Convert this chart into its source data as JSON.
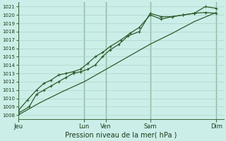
{
  "title": "Pression niveau de la mer( hPa )",
  "bg_color": "#cceee8",
  "grid_color": "#aad4cc",
  "line_color": "#2d5c2d",
  "marker_color": "#2d5c2d",
  "ylim": [
    1007.5,
    1021.5
  ],
  "yticks": [
    1008,
    1009,
    1010,
    1011,
    1012,
    1013,
    1014,
    1015,
    1016,
    1017,
    1018,
    1019,
    1020,
    1021
  ],
  "xtick_labels": [
    "Jeu",
    "Lun",
    "Ven",
    "Sam",
    "Dim"
  ],
  "xtick_positions": [
    0,
    36,
    48,
    72,
    108
  ],
  "xmin": 0,
  "xmax": 112,
  "vlines": [
    0,
    36,
    48,
    72,
    108
  ],
  "smooth_line": {
    "x": [
      0,
      12,
      24,
      36,
      48,
      60,
      72,
      84,
      96,
      108
    ],
    "y": [
      1008.0,
      1009.5,
      1010.8,
      1012.0,
      1013.5,
      1015.0,
      1016.5,
      1017.8,
      1019.2,
      1020.3
    ]
  },
  "series1_x": [
    0,
    6,
    10,
    14,
    18,
    22,
    26,
    30,
    34,
    38,
    42,
    46,
    50,
    55,
    60,
    66,
    72,
    78,
    84,
    90,
    96,
    102,
    108
  ],
  "series1_y": [
    1008.2,
    1009.0,
    1010.5,
    1011.0,
    1011.5,
    1012.0,
    1012.5,
    1013.0,
    1013.2,
    1013.5,
    1014.0,
    1015.0,
    1015.8,
    1016.5,
    1017.5,
    1018.0,
    1020.2,
    1019.8,
    1019.8,
    1020.0,
    1020.2,
    1020.3,
    1020.2
  ],
  "series2_x": [
    0,
    5,
    10,
    14,
    18,
    22,
    26,
    30,
    34,
    38,
    42,
    46,
    50,
    56,
    61,
    66,
    72,
    78,
    84,
    90,
    96,
    102,
    108
  ],
  "series2_y": [
    1008.5,
    1009.8,
    1011.0,
    1011.8,
    1012.2,
    1012.8,
    1013.0,
    1013.2,
    1013.5,
    1014.2,
    1015.0,
    1015.5,
    1016.2,
    1017.0,
    1017.8,
    1018.5,
    1020.0,
    1019.5,
    1019.8,
    1020.0,
    1020.2,
    1021.0,
    1020.8
  ]
}
